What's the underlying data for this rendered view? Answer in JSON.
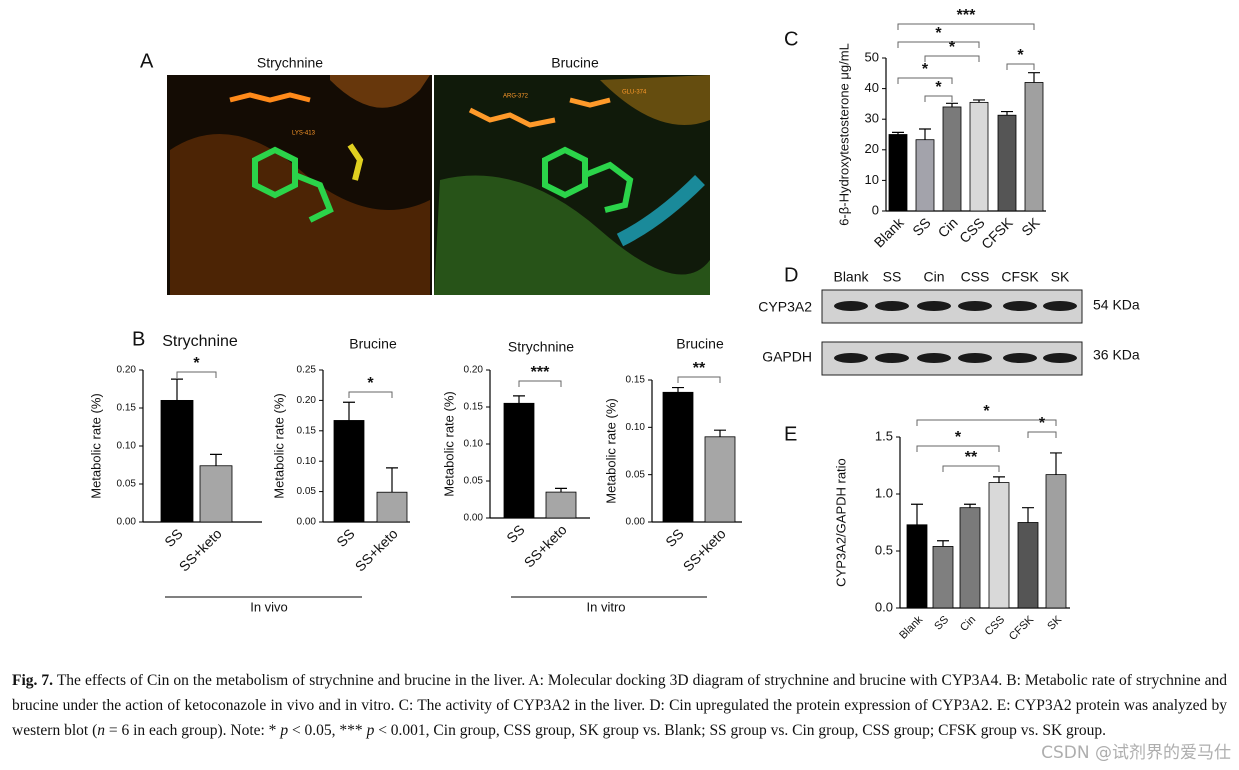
{
  "panel_labels": [
    "A",
    "B",
    "C",
    "D",
    "E"
  ],
  "docking": [
    {
      "title": "Strychnine",
      "residues": [
        "LYS-413"
      ]
    },
    {
      "title": "Brucine",
      "residues": [
        "ARG-372",
        "GLU-374"
      ]
    }
  ],
  "chart_data": [
    {
      "type": "bar",
      "title": "Strychnine",
      "ylabel": "Metabolic rate (%)",
      "categories": [
        "SS",
        "SS+keto"
      ],
      "values": [
        0.16,
        0.074
      ],
      "errors": [
        0.028,
        0.015
      ],
      "colors": [
        "#000000",
        "#a6a6a6"
      ],
      "ylim": [
        0,
        0.2
      ],
      "yticks": [
        {
          "value": 0,
          "label": "0.00"
        },
        {
          "value": 0.05,
          "label": "0.05"
        },
        {
          "value": 0.1,
          "label": "0.10"
        },
        {
          "value": 0.15,
          "label": "0.15"
        },
        {
          "value": 0.2,
          "label": "0.20"
        }
      ],
      "comparisons": [
        {
          "label": "*",
          "between": [
            "SS",
            "SS+keto"
          ]
        }
      ]
    },
    {
      "type": "bar",
      "title": "Brucine",
      "ylabel": "Metabolic rate (%)",
      "categories": [
        "SS",
        "SS+keto"
      ],
      "values": [
        0.167,
        0.049
      ],
      "errors": [
        0.03,
        0.04
      ],
      "colors": [
        "#000000",
        "#a6a6a6"
      ],
      "ylim": [
        0,
        0.25
      ],
      "yticks": [
        {
          "value": 0,
          "label": "0.00"
        },
        {
          "value": 0.05,
          "label": "0.05"
        },
        {
          "value": 0.1,
          "label": "0.10"
        },
        {
          "value": 0.15,
          "label": "0.15"
        },
        {
          "value": 0.2,
          "label": "0.20"
        },
        {
          "value": 0.25,
          "label": "0.25"
        }
      ],
      "comparisons": [
        {
          "label": "*",
          "between": [
            "SS",
            "SS+keto"
          ]
        }
      ]
    },
    {
      "type": "bar",
      "title": "Strychnine",
      "ylabel": "Metabolic rate (%)",
      "categories": [
        "SS",
        "SS+keto"
      ],
      "values": [
        0.155,
        0.035
      ],
      "errors": [
        0.01,
        0.005
      ],
      "colors": [
        "#000000",
        "#a6a6a6"
      ],
      "ylim": [
        0,
        0.2
      ],
      "yticks": [
        {
          "value": 0,
          "label": "0.00"
        },
        {
          "value": 0.05,
          "label": "0.05"
        },
        {
          "value": 0.1,
          "label": "0.10"
        },
        {
          "value": 0.15,
          "label": "0.15"
        },
        {
          "value": 0.2,
          "label": "0.20"
        }
      ],
      "comparisons": [
        {
          "label": "***",
          "between": [
            "SS",
            "SS+keto"
          ]
        }
      ]
    },
    {
      "type": "bar",
      "title": "Brucine",
      "ylabel": "Metabolic rate (%)",
      "categories": [
        "SS",
        "SS+keto"
      ],
      "values": [
        0.137,
        0.09
      ],
      "errors": [
        0.005,
        0.007
      ],
      "colors": [
        "#000000",
        "#a6a6a6"
      ],
      "ylim": [
        0,
        0.15
      ],
      "yticks": [
        {
          "value": 0,
          "label": "0.00"
        },
        {
          "value": 0.05,
          "label": "0.05"
        },
        {
          "value": 0.1,
          "label": "0.10"
        },
        {
          "value": 0.15,
          "label": "0.15"
        }
      ],
      "comparisons": [
        {
          "label": "**",
          "between": [
            "SS",
            "SS+keto"
          ]
        }
      ]
    },
    {
      "type": "bar",
      "ylabel": "6-β-Hydroxytestosterone μg/mL",
      "categories": [
        "Blank",
        "SS",
        "Cin",
        "CSS",
        "CFSK",
        "SK"
      ],
      "values": [
        25,
        23.3,
        34,
        35.5,
        31.3,
        42
      ],
      "errors": [
        0.7,
        3.5,
        1.2,
        0.8,
        1.2,
        3.2
      ],
      "colors": [
        "#000000",
        "#a3a3ab",
        "#7a7a7a",
        "#d9d9d9",
        "#555555",
        "#a0a0a0"
      ],
      "ylim": [
        0,
        50
      ],
      "yticks": [
        0,
        10,
        20,
        30,
        40,
        50
      ],
      "comparisons": [
        {
          "label": "***",
          "between": [
            "Blank",
            "SK"
          ]
        },
        {
          "label": "*",
          "between": [
            "Blank",
            "CSS"
          ]
        },
        {
          "label": "*",
          "between": [
            "SS",
            "CSS"
          ]
        },
        {
          "label": "*",
          "between": [
            "Blank",
            "Cin"
          ]
        },
        {
          "label": "*",
          "between": [
            "SS",
            "Cin"
          ]
        },
        {
          "label": "*",
          "between": [
            "CFSK",
            "SK"
          ]
        }
      ]
    },
    {
      "type": "bar",
      "ylabel": "CYP3A2/GAPDH ratio",
      "categories": [
        "Blank",
        "SS",
        "Cin",
        "CSS",
        "CFSK",
        "SK"
      ],
      "values": [
        0.73,
        0.54,
        0.88,
        1.1,
        0.75,
        1.17
      ],
      "errors": [
        0.18,
        0.05,
        0.03,
        0.05,
        0.13,
        0.19
      ],
      "colors": [
        "#000000",
        "#7f7f7f",
        "#7a7a7a",
        "#d9d9d9",
        "#555555",
        "#a0a0a0"
      ],
      "ylim": [
        0,
        1.5
      ],
      "yticks": [
        {
          "value": 0,
          "label": "0.0"
        },
        {
          "value": 0.5,
          "label": "0.5"
        },
        {
          "value": 1,
          "label": "1.0"
        },
        {
          "value": 1.5,
          "label": "1.5"
        }
      ],
      "comparisons": [
        {
          "label": "*",
          "between": [
            "Blank",
            "SK"
          ]
        },
        {
          "label": "*",
          "between": [
            "Blank",
            "CSS"
          ]
        },
        {
          "label": "**",
          "between": [
            "SS",
            "CSS"
          ]
        },
        {
          "label": "*",
          "between": [
            "CFSK",
            "SK"
          ]
        }
      ]
    }
  ],
  "groups": [
    {
      "label": "In vivo"
    },
    {
      "label": "In vitro"
    }
  ],
  "blot": {
    "lanes": [
      "Blank",
      "SS",
      "Cin",
      "CSS",
      "CFSK",
      "SK"
    ],
    "rows": [
      {
        "name": "CYP3A2",
        "size": "54 KDa"
      },
      {
        "name": "GAPDH",
        "size": "36 KDa"
      }
    ]
  },
  "caption": {
    "label": "Fig. 7.",
    "parts": [
      {
        "text": "The effects of Cin on the metabolism of strychnine and brucine in the liver. A: Molecular docking 3D diagram of strychnine and brucine with CYP3A4. B: Metabolic rate of strychnine and brucine under the action of ketoconazole in vivo and in vitro. C: The activity of CYP3A2 in the liver. D: Cin upregulated the protein expression of CYP3A2. E: CYP3A2 protein was analyzed by western blot (",
        "italic": false
      },
      {
        "text": "n",
        "italic": true
      },
      {
        "text": " = 6 in each group). Note: * ",
        "italic": false
      },
      {
        "text": "p",
        "italic": true
      },
      {
        "text": " < 0.05, *** ",
        "italic": false
      },
      {
        "text": "p",
        "italic": true
      },
      {
        "text": " < 0.001, Cin group, CSS group, SK group vs. Blank; SS group vs. Cin group, CSS group; CFSK group vs. SK group.",
        "italic": false
      }
    ]
  },
  "watermark": "CSDN @试剂界的爱马仕"
}
